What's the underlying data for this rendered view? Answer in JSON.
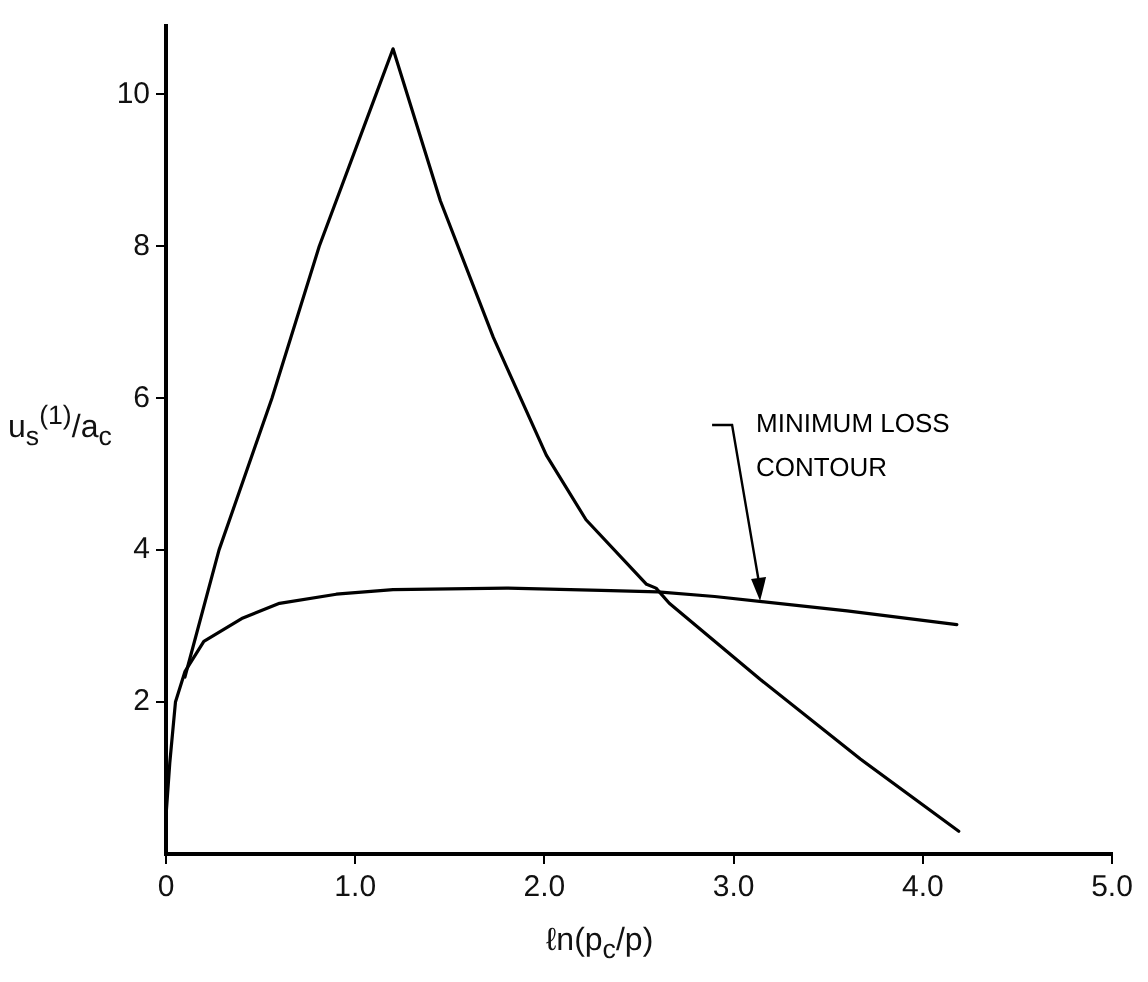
{
  "chart_data": {
    "type": "line",
    "xlabel": "ℓn(p$_{c}$/p)",
    "ylabel": "u$_{s}$$^{(1)}$/a$_{c}$",
    "xlim": [
      0,
      5
    ],
    "ylim": [
      0,
      10.9
    ],
    "xticks": [
      {
        "value": 0,
        "label": "0"
      },
      {
        "value": 1,
        "label": "1.0"
      },
      {
        "value": 2,
        "label": "2.0"
      },
      {
        "value": 3,
        "label": "3.0"
      },
      {
        "value": 4,
        "label": "4.0"
      },
      {
        "value": 5,
        "label": "5.0"
      }
    ],
    "yticks": [
      2,
      4,
      6,
      8,
      10
    ],
    "grid": false,
    "legend": false,
    "marker": "none",
    "line_style": "solid",
    "series": [
      {
        "color": "#000000",
        "x": [
          0.1,
          0.28,
          0.56,
          0.81,
          1.11,
          1.2,
          1.45,
          1.73,
          2.01,
          2.22,
          2.54,
          2.59,
          2.66,
          3.14,
          3.67,
          4.19
        ],
        "values": [
          2.33,
          4.0,
          6.0,
          8.0,
          10.0,
          10.6,
          8.6,
          6.8,
          5.25,
          4.4,
          3.55,
          3.5,
          3.3,
          2.3,
          1.25,
          0.3
        ]
      },
      {
        "color": "#000000",
        "x": [
          0,
          0.02,
          0.05,
          0.1,
          0.2,
          0.4,
          0.6,
          0.9,
          1.2,
          1.8,
          2.3,
          2.6,
          2.9,
          3.6,
          4.18
        ],
        "values": [
          0.5,
          1.2,
          2.0,
          2.4,
          2.8,
          3.1,
          3.3,
          3.42,
          3.48,
          3.5,
          3.47,
          3.45,
          3.39,
          3.2,
          3.02
        ]
      }
    ],
    "annotations": [
      {
        "text": "MINIMUM LOSS CONTOUR",
        "x": 3.14,
        "y": 3.33
      }
    ]
  }
}
